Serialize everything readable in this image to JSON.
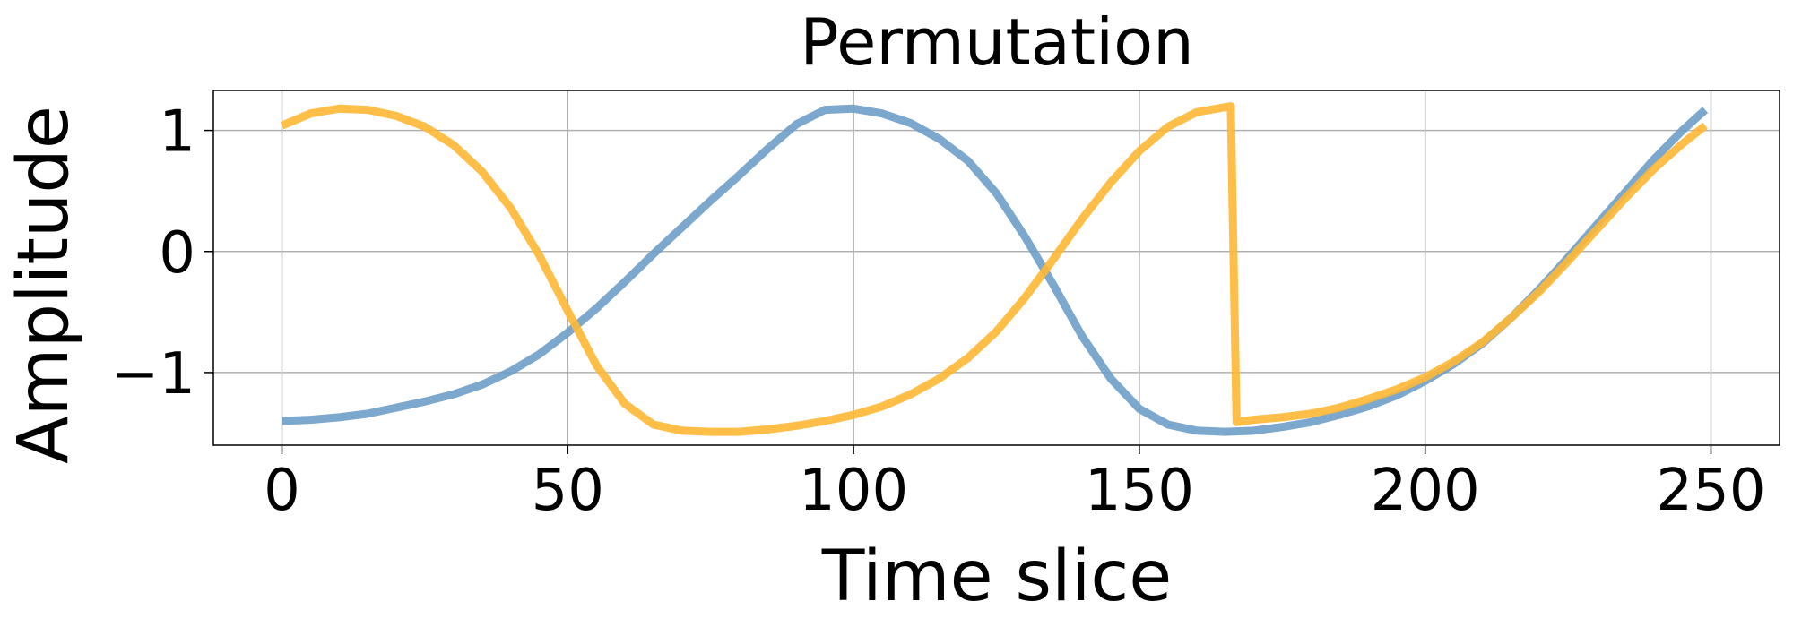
{
  "chart_data": {
    "type": "line",
    "title": "Permutation",
    "xlabel": "Time slice",
    "ylabel": "Amplitude",
    "xlim": [
      -12,
      262
    ],
    "ylim": [
      -1.6,
      1.33
    ],
    "xticks": [
      0,
      50,
      100,
      150,
      200,
      250
    ],
    "xtick_labels": [
      "0",
      "50",
      "100",
      "150",
      "200",
      "250"
    ],
    "yticks": [
      -1,
      0,
      1
    ],
    "ytick_labels": [
      "−1",
      "0",
      "1"
    ],
    "grid": true,
    "legend": "none",
    "series": [
      {
        "color": "#6f9ec8",
        "x": [
          0,
          5,
          10,
          15,
          20,
          25,
          30,
          35,
          40,
          45,
          50,
          55,
          60,
          65,
          70,
          75,
          80,
          85,
          90,
          95,
          100,
          105,
          110,
          115,
          120,
          125,
          130,
          135,
          140,
          145,
          150,
          155,
          160,
          165,
          170,
          175,
          180,
          185,
          190,
          195,
          200,
          205,
          210,
          215,
          220,
          225,
          230,
          235,
          240,
          245,
          249
        ],
        "y": [
          -1.4,
          -1.39,
          -1.37,
          -1.34,
          -1.29,
          -1.24,
          -1.18,
          -1.1,
          -0.99,
          -0.85,
          -0.67,
          -0.47,
          -0.25,
          -0.02,
          0.2,
          0.42,
          0.63,
          0.85,
          1.05,
          1.17,
          1.18,
          1.14,
          1.06,
          0.93,
          0.75,
          0.48,
          0.12,
          -0.28,
          -0.7,
          -1.05,
          -1.3,
          -1.43,
          -1.48,
          -1.49,
          -1.48,
          -1.45,
          -1.41,
          -1.35,
          -1.28,
          -1.19,
          -1.07,
          -0.93,
          -0.76,
          -0.55,
          -0.31,
          -0.05,
          0.22,
          0.49,
          0.76,
          1.0,
          1.17
        ]
      },
      {
        "color": "#ffb733",
        "x": [
          0,
          5,
          10,
          15,
          20,
          25,
          30,
          35,
          40,
          45,
          50,
          55,
          60,
          65,
          70,
          75,
          80,
          85,
          90,
          95,
          100,
          105,
          110,
          115,
          120,
          125,
          130,
          135,
          140,
          145,
          150,
          155,
          160,
          166,
          167,
          170,
          175,
          180,
          185,
          190,
          195,
          200,
          205,
          210,
          215,
          220,
          225,
          230,
          235,
          240,
          245,
          249
        ],
        "y": [
          1.04,
          1.14,
          1.18,
          1.17,
          1.12,
          1.03,
          0.88,
          0.66,
          0.36,
          -0.03,
          -0.49,
          -0.94,
          -1.26,
          -1.43,
          -1.48,
          -1.49,
          -1.49,
          -1.47,
          -1.44,
          -1.4,
          -1.35,
          -1.28,
          -1.18,
          -1.05,
          -0.88,
          -0.66,
          -0.38,
          -0.06,
          0.27,
          0.57,
          0.83,
          1.03,
          1.15,
          1.2,
          -1.41,
          -1.39,
          -1.37,
          -1.34,
          -1.29,
          -1.22,
          -1.14,
          -1.04,
          -0.91,
          -0.75,
          -0.55,
          -0.33,
          -0.08,
          0.18,
          0.44,
          0.68,
          0.89,
          1.04
        ]
      }
    ]
  }
}
